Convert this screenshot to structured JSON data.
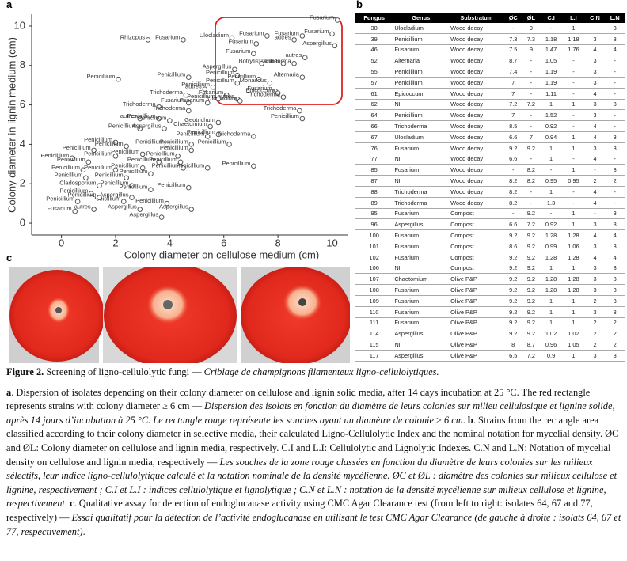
{
  "panel_labels": [
    "a",
    "b",
    "c"
  ],
  "chart_data": {
    "type": "scatter",
    "xlabel": "Colony diameter on cellulose medium (cm)",
    "ylabel": "Colony diameter in lignin medium (cm)",
    "xlim": [
      -1.1,
      10.6
    ],
    "ylim": [
      -0.6,
      10.6
    ],
    "xticks": [
      0,
      2,
      4,
      6,
      8,
      10
    ],
    "yticks": [
      0,
      2,
      4,
      6,
      8,
      10
    ],
    "color": "#555555",
    "point_labels": [
      "Rhizopus",
      "Fusarium",
      "Ulocladium",
      "Fusarium",
      "Fusarium",
      "Fusarium",
      "Fusarium",
      "autres",
      "Aspergillus",
      "Fusarium",
      "autres",
      "Trichoderma",
      "Botrytis",
      "autres",
      "Fusarium",
      "Aspergillus",
      "Alternaria",
      "Penicillium",
      "Penicillium",
      "Monascus",
      "Penicillium",
      "Fusarium",
      "Epicoccum",
      "Trichoderma",
      "Fusarium",
      "autres",
      "Ulocladium",
      "Penicillium",
      "Penicillium",
      "Penicillium",
      "Penicillium",
      "autres",
      "Trichoderma",
      "Fusarium",
      "Fusarium",
      "Trichoderma",
      "Trichoderma",
      "Penicillium",
      "autres",
      "Penicillium",
      "Trichoderma",
      "Penicillium",
      "Geotrichum",
      "Chaetomium",
      "Penicillium",
      "Aspergillus",
      "Penicillium",
      "Penicillium",
      "Trichoderma",
      "Penicillium",
      "Penicillium",
      "Penicillium",
      "Penicillium",
      "Penicillium",
      "Penicillium",
      "Penicillium",
      "Penicillium",
      "Penicillium",
      "Penicillium",
      "Penicillium",
      "Penicillium",
      "Penicillium",
      "Penicillium",
      "Penicillium",
      "Penicillium",
      "Penicillium",
      "Penicillium",
      "Penicillium",
      "Penicillium",
      "Penicillium",
      "Penicillium",
      "Cladosporium",
      "Penicillium",
      "Penicillium",
      "Penicillium",
      "Penicillium",
      "Aspergillus",
      "Penicillium",
      "Penicillium",
      "Penicillium",
      "autres",
      "Aspergillus",
      "Fusarium",
      "Aspergillus",
      "Aspergillus",
      "Penicillium",
      "Penicillium"
    ],
    "x": [
      3.2,
      4.5,
      6.3,
      7.6,
      8.9,
      10.0,
      10.2,
      8.6,
      10.1,
      7.2,
      9.0,
      8.6,
      7.4,
      8.2,
      7.1,
      6.4,
      8.9,
      6.5,
      7.3,
      7.7,
      6.5,
      7.9,
      8.0,
      8.2,
      6.1,
      6.5,
      6.6,
      5.8,
      2.1,
      4.7,
      5.6,
      5.3,
      4.6,
      4.7,
      5.4,
      3.6,
      4.7,
      8.9,
      2.9,
      3.6,
      8.8,
      4.0,
      5.8,
      5.5,
      2.9,
      3.8,
      5.8,
      5.4,
      7.1,
      2.0,
      2.4,
      3.9,
      4.8,
      6.2,
      1.2,
      4.8,
      2.0,
      4.3,
      0.4,
      1.0,
      3.6,
      4.4,
      7.1,
      0.8,
      2.0,
      3.0,
      4.5,
      5.4,
      3.3,
      0.9,
      2.4,
      1.4,
      2.6,
      1.1,
      3.3,
      4.7,
      2.6,
      2.3,
      0.6,
      3.9,
      1.2,
      2.9,
      0.5,
      4.8,
      3.7,
      1.4,
      3.0
    ],
    "values": [
      9.3,
      9.3,
      9.4,
      9.5,
      9.5,
      9.6,
      10.3,
      9.3,
      9.0,
      9.1,
      8.4,
      8.1,
      8.1,
      8.1,
      8.6,
      7.8,
      7.4,
      7.5,
      7.3,
      7.1,
      7.1,
      6.7,
      6.6,
      6.4,
      6.5,
      6.3,
      6.2,
      6.3,
      7.3,
      7.4,
      6.9,
      6.8,
      6.5,
      6.1,
      6.1,
      5.9,
      5.7,
      5.3,
      5.3,
      5.3,
      5.7,
      5.2,
      5.1,
      4.9,
      4.8,
      4.8,
      4.5,
      4.4,
      4.4,
      4.1,
      3.9,
      4.0,
      4.0,
      4.0,
      3.7,
      3.7,
      3.4,
      3.4,
      3.3,
      3.1,
      3.1,
      3.1,
      2.9,
      2.7,
      2.7,
      2.8,
      2.8,
      2.8,
      2.5,
      2.3,
      2.3,
      1.9,
      1.9,
      1.5,
      1.7,
      1.8,
      1.3,
      1.1,
      1.1,
      1.0,
      0.7,
      0.7,
      0.6,
      0.7,
      0.3,
      1.3,
      3.5
    ]
  },
  "table": {
    "columns": [
      "Fungus",
      "Genus",
      "Substratum",
      "ØC",
      "ØL",
      "C.I",
      "L.I",
      "C.N",
      "L.N"
    ],
    "rows": [
      [
        "38",
        "Ulocladium",
        "Wood decay",
        "-",
        "9",
        "-",
        "1",
        "-",
        "3"
      ],
      [
        "39",
        "Penicillium",
        "Wood decay",
        "7.3",
        "7.3",
        "1.18",
        "1.18",
        "3",
        "3"
      ],
      [
        "46",
        "Fusarium",
        "Wood decay",
        "7.5",
        "9",
        "1.47",
        "1.76",
        "4",
        "4"
      ],
      [
        "52",
        "Alternaria",
        "Wood decay",
        "8.7",
        "-",
        "1.05",
        "-",
        "3",
        "-"
      ],
      [
        "55",
        "Penicillium",
        "Wood decay",
        "7.4",
        "-",
        "1.19",
        "-",
        "3",
        "-"
      ],
      [
        "57",
        "Penicillium",
        "Wood decay",
        "7",
        "-",
        "1.19",
        "-",
        "3",
        "-"
      ],
      [
        "61",
        "Epicoccum",
        "Wood decay",
        "7",
        "-",
        "1.11",
        "-",
        "4",
        "-"
      ],
      [
        "62",
        "NI",
        "Wood decay",
        "7.2",
        "7.2",
        "1",
        "1",
        "3",
        "3"
      ],
      [
        "64",
        "Penicillium",
        "Wood decay",
        "7",
        "-",
        "1.52",
        "-",
        "3",
        "-"
      ],
      [
        "66",
        "Trichoderma",
        "Wood decay",
        "8.5",
        "-",
        "0.92",
        "-",
        "4",
        "-"
      ],
      [
        "67",
        "Ulocladium",
        "Wood decay",
        "6.6",
        "7",
        "0.94",
        "1",
        "4",
        "3"
      ],
      [
        "76",
        "Fusarium",
        "Wood decay",
        "9.2",
        "9.2",
        "1",
        "1",
        "3",
        "3"
      ],
      [
        "77",
        "NI",
        "Wood decay",
        "6.6",
        "-",
        "1",
        "-",
        "4",
        "-"
      ],
      [
        "85",
        "Fusarium",
        "Wood decay",
        "-",
        "8.2",
        "-",
        "1",
        "-",
        "3"
      ],
      [
        "87",
        "NI",
        "Wood decay",
        "8.2",
        "8.2",
        "0.95",
        "0.95",
        "2",
        "2"
      ],
      [
        "88",
        "Trichoderma",
        "Wood decay",
        "8.2",
        "-",
        "1",
        "-",
        "4",
        "-"
      ],
      [
        "89",
        "Trichoderma",
        "Wood decay",
        "8.2",
        "-",
        "1.3",
        "-",
        "4",
        "-"
      ],
      [
        "95",
        "Fusarium",
        "Compost",
        "-",
        "9.2",
        "-",
        "1",
        "-",
        "3"
      ],
      [
        "96",
        "Aspergillus",
        "Compost",
        "6.6",
        "7.2",
        "0.92",
        "1",
        "3",
        "3"
      ],
      [
        "100",
        "Fusarium",
        "Compost",
        "9.2",
        "9.2",
        "1.28",
        "1.28",
        "4",
        "4"
      ],
      [
        "101",
        "Fusarium",
        "Compost",
        "8.6",
        "9.2",
        "0.99",
        "1.06",
        "3",
        "3"
      ],
      [
        "102",
        "Fusarium",
        "Compost",
        "9.2",
        "9.2",
        "1.28",
        "1.28",
        "4",
        "4"
      ],
      [
        "106",
        "NI",
        "Compost",
        "9.2",
        "9.2",
        "1",
        "1",
        "3",
        "3"
      ],
      [
        "107",
        "Chaetomium",
        "Olive P&P",
        "9.2",
        "9.2",
        "1.28",
        "1.28",
        "3",
        "3"
      ],
      [
        "108",
        "Fusarium",
        "Olive P&P",
        "9.2",
        "9.2",
        "1.28",
        "1.28",
        "3",
        "3"
      ],
      [
        "109",
        "Fusarium",
        "Olive P&P",
        "9.2",
        "9.2",
        "1",
        "1",
        "2",
        "3"
      ],
      [
        "110",
        "Fusarium",
        "Olive P&P",
        "9.2",
        "9.2",
        "1",
        "1",
        "3",
        "3"
      ],
      [
        "111",
        "Fusarium",
        "Olive P&P",
        "9.2",
        "9.2",
        "1",
        "1",
        "2",
        "2"
      ],
      [
        "114",
        "Aspergillus",
        "Olive P&P",
        "9.2",
        "9.2",
        "1.02",
        "1.02",
        "2",
        "2"
      ],
      [
        "115",
        "NI",
        "Olive P&P",
        "8",
        "8.7",
        "0.96",
        "1.05",
        "2",
        "2"
      ],
      [
        "117",
        "Aspergillus",
        "Olive P&P",
        "6.5",
        "7.2",
        "0.9",
        "1",
        "3",
        "3"
      ]
    ]
  },
  "caption": {
    "paragraphs": [
      [
        {
          "text": "Figure 2.",
          "style": "bold"
        },
        {
          "text": " Screening of ligno-cellulolytic fungi — ",
          "style": "normal"
        },
        {
          "text": "Criblage de champignons filamenteux ligno-cellulolytiques.",
          "style": "italic"
        }
      ],
      [
        {
          "text": "a",
          "style": "bold"
        },
        {
          "text": ". Dispersion of isolates depending on their colony diameter on cellulose and lignin solid media, after 14 days incubation at 25 °C. The red rectangle represents strains with colony diameter ≥ 6 cm — ",
          "style": "normal"
        },
        {
          "text": "Dispersion des isolats en fonction du diamètre de leurs colonies sur milieu cellulosique et lignine solide, après 14 jours d’incubation à 25 °C. Le rectangle rouge représente les souches ayant un diamètre de colonie ≥ 6 cm",
          "style": "italic"
        },
        {
          "text": ". ",
          "style": "normal"
        },
        {
          "text": "b",
          "style": "bold"
        },
        {
          "text": ". Strains from the rectangle area classified according to their colony diameter in selective media, their calculated Ligno-Cellulolytic Index and the nominal notation for mycelial density. ØC and ØL: Colony diameter on cellulose and lignin media, respectively. C.I and L.I: Cellulolytic and Lignolytic Indexes. C.N and L.N: Notation of mycelial density on cellulose and lignin media, respectively — ",
          "style": "normal"
        },
        {
          "text": "Les souches de la zone rouge classées en fonction du diamètre de leurs colonies sur les milieux sélectifs, leur indice ligno-cellulolytique calculé et la notation nominale de la densité mycélienne. ØC et ØL : diamètre des colonies sur milieux cellulose et lignine, respectivement ; C.I et L.I : indices cellulolytique et lignolytique ; C.N et L.N : notation de la densité mycélienne sur milieux cellulose et lignine, respectivement",
          "style": "italic"
        },
        {
          "text": ". ",
          "style": "normal"
        },
        {
          "text": "c",
          "style": "bold"
        },
        {
          "text": ". Qualitative assay for detection of endoglucanase activity using CMC Agar Clearance test (from left to right: isolates 64, 67 and 77, respectively) — ",
          "style": "normal"
        },
        {
          "text": "Essai qualitatif pour la détection de l’activité endoglucanase en utilisant le test CMC Agar Clearance (de gauche à droite : isolats 64, 67 et 77, respectivement)",
          "style": "italic"
        },
        {
          "text": ".",
          "style": "normal"
        }
      ]
    ]
  }
}
